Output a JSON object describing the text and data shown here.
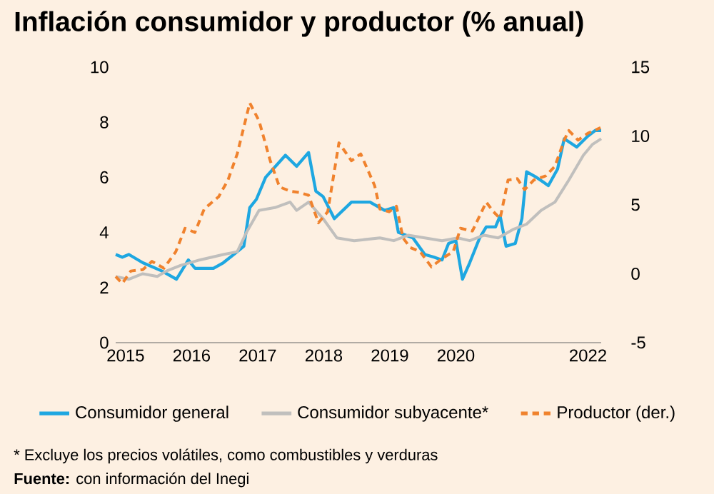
{
  "chart_data": {
    "type": "line",
    "title": "Inflación consumidor y productor (% anual)",
    "annotations": [
      "* Excluye los precios volátiles, como combustibles y verduras",
      "**Fuente:** con información del Inegi"
    ],
    "xlim": [
      2014.85,
      2022.2
    ],
    "xticks": [
      2015,
      2016,
      2017,
      2018,
      2019,
      2020,
      2022
    ],
    "ylim": [
      0,
      10
    ],
    "yticks": [
      0,
      2,
      4,
      6,
      8,
      10
    ],
    "y2lim": [
      -5,
      15
    ],
    "y2ticks": [
      -5,
      0,
      5,
      10,
      15
    ],
    "legend": "bottom",
    "grid": false,
    "marker": "none",
    "series": [
      {
        "name": "Consumidor general",
        "color": "#1ea7e1",
        "line_style": "solid",
        "x": [
          2014.85,
          2014.95,
          2015.05,
          2015.26,
          2015.55,
          2015.77,
          2015.95,
          2016.05,
          2016.33,
          2016.48,
          2016.69,
          2016.79,
          2016.88,
          2016.98,
          2017.12,
          2017.42,
          2017.59,
          2017.77,
          2017.88,
          2017.99,
          2018.16,
          2018.42,
          2018.7,
          2018.92,
          2019.06,
          2019.13,
          2019.35,
          2019.53,
          2019.67,
          2019.79,
          2019.89,
          2020.0,
          2020.1,
          2020.21,
          2020.36,
          2020.46,
          2020.6,
          2020.67,
          2020.76,
          2020.9,
          2021.0,
          2021.07,
          2021.22,
          2021.4,
          2021.54,
          2021.64,
          2021.83,
          2022.0,
          2022.11,
          2022.2
        ],
        "values": [
          3.2,
          3.1,
          3.2,
          2.9,
          2.6,
          2.3,
          3.0,
          2.7,
          2.7,
          2.9,
          3.3,
          3.5,
          4.9,
          5.2,
          6.0,
          6.8,
          6.4,
          6.9,
          5.5,
          5.3,
          4.5,
          5.1,
          5.1,
          4.8,
          4.9,
          4.0,
          3.8,
          3.2,
          3.1,
          3.0,
          3.6,
          3.7,
          2.3,
          2.9,
          3.8,
          4.2,
          4.2,
          4.6,
          3.5,
          3.6,
          4.5,
          6.2,
          6.0,
          5.7,
          6.3,
          7.4,
          7.1,
          7.5,
          7.7,
          7.7
        ]
      },
      {
        "name": "Consumidor subyacente*",
        "color": "#c0bfbd",
        "line_style": "solid",
        "x": [
          2014.85,
          2015.05,
          2015.26,
          2015.48,
          2015.62,
          2015.83,
          2016.12,
          2016.48,
          2016.69,
          2016.83,
          2017.02,
          2017.26,
          2017.49,
          2017.59,
          2017.77,
          2017.99,
          2018.2,
          2018.46,
          2018.85,
          2019.06,
          2019.28,
          2019.53,
          2019.79,
          2020.03,
          2020.21,
          2020.43,
          2020.64,
          2020.86,
          2021.07,
          2021.29,
          2021.5,
          2021.71,
          2021.93,
          2022.07,
          2022.2
        ],
        "values": [
          2.4,
          2.3,
          2.5,
          2.4,
          2.6,
          2.8,
          3.0,
          3.2,
          3.3,
          4.0,
          4.8,
          4.9,
          5.1,
          4.8,
          5.1,
          4.5,
          3.8,
          3.7,
          3.8,
          3.7,
          3.9,
          3.8,
          3.7,
          3.8,
          3.7,
          3.9,
          3.8,
          4.1,
          4.3,
          4.8,
          5.1,
          5.9,
          6.8,
          7.2,
          7.4
        ]
      },
      {
        "name": "Productor (der.)",
        "color": "#f0822d",
        "line_style": "dashed",
        "axis": "y2",
        "x": [
          2014.85,
          2014.95,
          2015.08,
          2015.26,
          2015.4,
          2015.58,
          2015.76,
          2015.9,
          2016.05,
          2016.19,
          2016.41,
          2016.55,
          2016.69,
          2016.88,
          2017.02,
          2017.19,
          2017.33,
          2017.49,
          2017.63,
          2017.77,
          2017.92,
          2018.06,
          2018.23,
          2018.42,
          2018.56,
          2018.77,
          2018.85,
          2018.99,
          2019.1,
          2019.2,
          2019.31,
          2019.46,
          2019.63,
          2019.79,
          2019.96,
          2020.07,
          2020.25,
          2020.39,
          2020.46,
          2020.57,
          2020.67,
          2020.79,
          2020.93,
          2021.04,
          2021.18,
          2021.36,
          2021.5,
          2021.64,
          2021.71,
          2021.85,
          2022.0,
          2022.19
        ],
        "values": [
          -0.2,
          -0.7,
          0.2,
          0.3,
          0.9,
          0.4,
          1.6,
          3.3,
          3.0,
          4.7,
          5.6,
          6.8,
          8.7,
          12.4,
          11.1,
          8.2,
          6.3,
          6.0,
          5.9,
          5.7,
          3.7,
          4.5,
          9.5,
          8.2,
          8.7,
          6.4,
          4.7,
          4.5,
          4.9,
          2.6,
          1.9,
          1.6,
          0.5,
          1.1,
          1.6,
          3.3,
          3.1,
          4.5,
          5.2,
          4.5,
          4.0,
          6.8,
          6.9,
          6.1,
          6.8,
          7.1,
          7.8,
          9.7,
          10.4,
          9.7,
          10.2,
          10.6
        ]
      }
    ]
  }
}
